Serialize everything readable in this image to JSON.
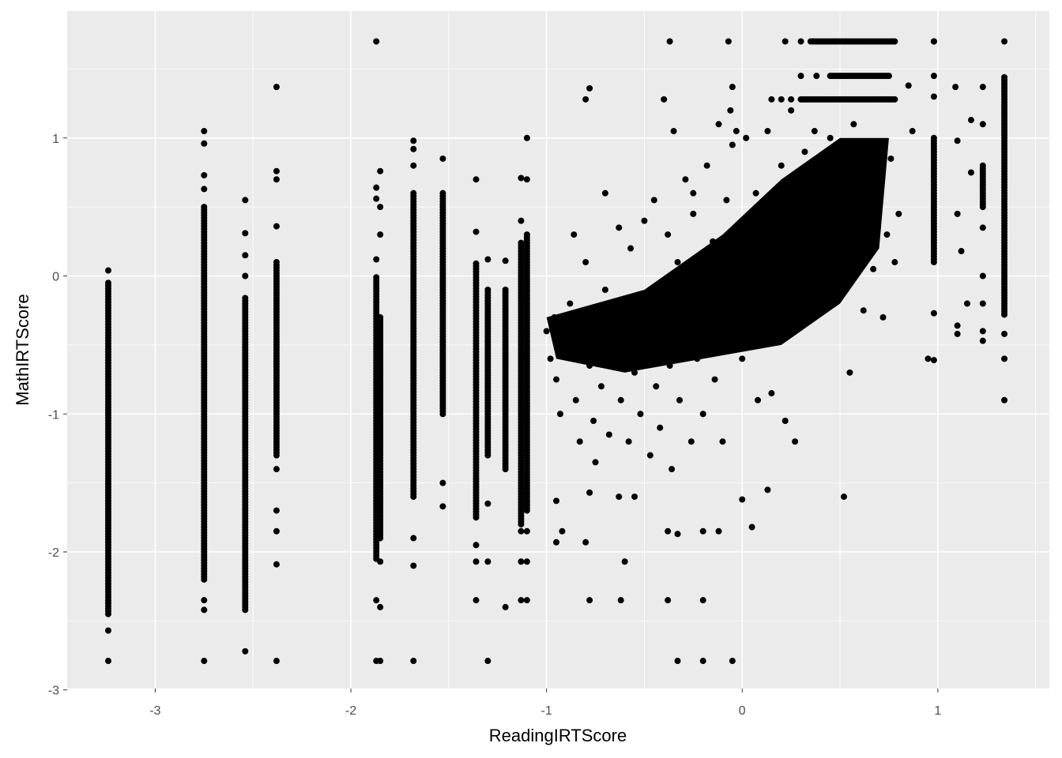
{
  "chart_data": {
    "type": "scatter",
    "title": "",
    "xlabel": "ReadingIRTScore",
    "ylabel": "MathIRTScore",
    "xlim": [
      -3.45,
      1.57
    ],
    "ylim": [
      -2.99,
      1.92
    ],
    "grid": true,
    "x_ticks": [
      -3,
      -2,
      -1,
      0,
      1
    ],
    "y_ticks": [
      -3,
      -2,
      -1,
      0,
      1
    ],
    "x_tick_labels": [
      "-3",
      "-2",
      "-1",
      "0",
      "1"
    ],
    "y_tick_labels": [
      "-3",
      "-2",
      "-1",
      "0",
      "1"
    ],
    "colors": {
      "panel": "#EBEBEB",
      "grid": "#FFFFFF",
      "point": "#000000"
    },
    "columns": [
      {
        "x": -3.24,
        "y_range": [
          -2.45,
          -0.05
        ],
        "y_points": [
          0.04,
          -2.57,
          -2.79
        ]
      },
      {
        "x": -2.75,
        "y_range": [
          -2.2,
          0.5
        ],
        "y_points": [
          1.05,
          0.96,
          0.73,
          0.63,
          -2.35,
          -2.42,
          -2.79
        ]
      },
      {
        "x": -2.54,
        "y_range": [
          -2.42,
          -0.15
        ],
        "y_points": [
          0.55,
          0.31,
          0.15,
          0.0,
          -2.72
        ]
      },
      {
        "x": -2.38,
        "y_range": [
          -1.3,
          0.1
        ],
        "y_points": [
          1.37,
          0.76,
          0.7,
          0.36,
          -1.4,
          -1.7,
          -1.85,
          -2.09,
          -2.79
        ]
      },
      {
        "x": -1.87,
        "y_range": [
          -2.05,
          0.0
        ],
        "y_points": [
          0.64,
          0.56,
          0.12,
          -2.35,
          -2.79,
          1.7
        ]
      },
      {
        "x": -1.85,
        "y_range": [
          -1.9,
          -0.3
        ],
        "y_points": [
          0.76,
          0.5,
          0.3,
          -2.07,
          -2.4,
          -2.79
        ]
      },
      {
        "x": -1.68,
        "y_range": [
          -1.6,
          0.6
        ],
        "y_points": [
          0.98,
          0.92,
          0.8,
          -1.9,
          -2.1,
          -2.79
        ]
      },
      {
        "x": -1.53,
        "y_range": [
          -1.0,
          0.6
        ],
        "y_points": [
          0.85,
          -1.5,
          -1.67
        ]
      },
      {
        "x": -1.36,
        "y_range": [
          -1.75,
          0.1
        ],
        "y_points": [
          0.7,
          0.32,
          -1.95,
          -2.07,
          -2.35
        ]
      },
      {
        "x": -1.3,
        "y_range": [
          -1.3,
          -0.1
        ],
        "y_points": [
          0.12,
          -1.65,
          -2.07,
          -2.79
        ]
      },
      {
        "x": -1.21,
        "y_range": [
          -1.4,
          -0.1
        ],
        "y_points": [
          0.11,
          -2.4
        ]
      },
      {
        "x": -1.13,
        "y_range": [
          -1.8,
          0.25
        ],
        "y_points": [
          0.71,
          0.4,
          -1.85,
          -2.07,
          -2.35
        ]
      },
      {
        "x": -1.1,
        "y_range": [
          -1.7,
          0.3
        ],
        "y_points": [
          1.0,
          0.7,
          -1.85,
          -2.07,
          -2.35
        ]
      },
      {
        "x": 0.98,
        "y_range": [
          0.1,
          1.0
        ],
        "y_points": [
          1.7,
          1.45,
          1.3,
          -0.27,
          -0.61
        ]
      },
      {
        "x": 1.23,
        "y_range": [
          0.5,
          0.8
        ],
        "y_points": [
          1.37,
          1.1,
          0.35,
          0.0,
          -0.2,
          -0.4,
          -0.47
        ]
      },
      {
        "x": 1.34,
        "y_range": [
          -0.28,
          1.45
        ],
        "y_points": [
          1.7,
          -0.42,
          -0.6,
          -0.9
        ]
      }
    ],
    "rows": [
      {
        "y": 1.7,
        "x_range": [
          0.35,
          0.78
        ],
        "x_points": [
          -0.37,
          -0.07,
          0.22,
          0.3,
          0.98
        ]
      },
      {
        "y": 1.28,
        "x_range": [
          0.3,
          0.78
        ],
        "x_points": [
          0.15,
          0.2,
          0.25
        ]
      },
      {
        "y": 1.45,
        "x_range": [
          0.45,
          0.75
        ],
        "x_points": [
          0.3,
          0.38
        ]
      }
    ],
    "dense_region": [
      [
        -1.0,
        -0.3
      ],
      [
        -0.5,
        -0.1
      ],
      [
        -0.1,
        0.3
      ],
      [
        0.2,
        0.7
      ],
      [
        0.5,
        1.0
      ],
      [
        0.75,
        1.0
      ],
      [
        0.7,
        0.2
      ],
      [
        0.5,
        -0.2
      ],
      [
        0.2,
        -0.5
      ],
      [
        -0.2,
        -0.6
      ],
      [
        -0.6,
        -0.7
      ],
      [
        -0.95,
        -0.6
      ]
    ],
    "points": [
      [
        -1,
        -0.4
      ],
      [
        -0.98,
        -0.6
      ],
      [
        -0.96,
        -0.3
      ],
      [
        -0.95,
        -0.75
      ],
      [
        -0.93,
        -1.0
      ],
      [
        -0.9,
        -0.5
      ],
      [
        -0.88,
        -0.2
      ],
      [
        -0.86,
        0.3
      ],
      [
        -0.85,
        -0.9
      ],
      [
        -0.83,
        -1.2
      ],
      [
        -0.8,
        -0.45
      ],
      [
        -0.8,
        0.1
      ],
      [
        -0.78,
        -0.65
      ],
      [
        -0.76,
        -1.05
      ],
      [
        -0.75,
        -1.35
      ],
      [
        -0.73,
        -0.3
      ],
      [
        -0.72,
        -0.8
      ],
      [
        -0.7,
        0.6
      ],
      [
        -0.7,
        -0.1
      ],
      [
        -0.68,
        -1.15
      ],
      [
        -0.66,
        -0.55
      ],
      [
        -0.65,
        -0.2
      ],
      [
        -0.63,
        0.35
      ],
      [
        -0.62,
        -0.9
      ],
      [
        -0.6,
        -0.4
      ],
      [
        -0.58,
        -1.2
      ],
      [
        -0.57,
        0.2
      ],
      [
        -0.55,
        -0.7
      ],
      [
        -0.53,
        -0.15
      ],
      [
        -0.52,
        -1.0
      ],
      [
        -0.5,
        -0.35
      ],
      [
        -0.5,
        0.4
      ],
      [
        -0.48,
        -0.55
      ],
      [
        -0.47,
        -1.3
      ],
      [
        -0.45,
        0.55
      ],
      [
        -0.44,
        -0.8
      ],
      [
        -0.43,
        -0.1
      ],
      [
        -0.42,
        -1.1
      ],
      [
        -0.4,
        -0.3
      ],
      [
        -0.38,
        0.3
      ],
      [
        -0.37,
        -0.65
      ],
      [
        -0.36,
        -1.4
      ],
      [
        -0.35,
        1.05
      ],
      [
        -0.33,
        0.1
      ],
      [
        -0.32,
        -0.9
      ],
      [
        -0.3,
        -0.45
      ],
      [
        -0.29,
        0.7
      ],
      [
        -0.28,
        -0.2
      ],
      [
        -0.26,
        -1.2
      ],
      [
        -0.25,
        0.45
      ],
      [
        -0.23,
        -0.6
      ],
      [
        -0.22,
        0.0
      ],
      [
        -0.2,
        -1.0
      ],
      [
        -0.18,
        0.8
      ],
      [
        -0.17,
        -0.35
      ],
      [
        -0.15,
        0.25
      ],
      [
        -0.14,
        -0.75
      ],
      [
        -0.12,
        1.1
      ],
      [
        -0.1,
        -0.1
      ],
      [
        -0.1,
        -1.2
      ],
      [
        -0.08,
        0.55
      ],
      [
        -0.06,
        -0.5
      ],
      [
        -0.05,
        0.95
      ],
      [
        -0.03,
        -0.2
      ],
      [
        -0.02,
        0.3
      ],
      [
        0,
        -0.6
      ],
      [
        0.02,
        1.0
      ],
      [
        0.03,
        0.05
      ],
      [
        0.05,
        -0.35
      ],
      [
        0.07,
        0.6
      ],
      [
        0.08,
        -0.9
      ],
      [
        0.1,
        0.25
      ],
      [
        0.12,
        -0.15
      ],
      [
        0.13,
        1.05
      ],
      [
        0.15,
        0.5
      ],
      [
        0.17,
        -0.45
      ],
      [
        0.18,
        0.15
      ],
      [
        0.2,
        0.8
      ],
      [
        0.22,
        -0.1
      ],
      [
        0.23,
        0.35
      ],
      [
        0.25,
        1.2
      ],
      [
        0.27,
        -0.3
      ],
      [
        0.28,
        0.6
      ],
      [
        0.3,
        0.05
      ],
      [
        0.32,
        0.9
      ],
      [
        0.33,
        -0.05
      ],
      [
        0.35,
        0.45
      ],
      [
        0.37,
        1.05
      ],
      [
        0.38,
        0.2
      ],
      [
        0.4,
        0.7
      ],
      [
        0.42,
        -0.2
      ],
      [
        0.43,
        0.4
      ],
      [
        0.45,
        1.0
      ],
      [
        0.47,
        0.1
      ],
      [
        0.48,
        0.6
      ],
      [
        0.5,
        0.85
      ],
      [
        0.52,
        0.3
      ],
      [
        0.53,
        -0.1
      ],
      [
        0.55,
        0.55
      ],
      [
        0.57,
        1.1
      ],
      [
        0.58,
        0.2
      ],
      [
        0.6,
        0.7
      ],
      [
        0.62,
        -0.25
      ],
      [
        0.63,
        0.4
      ],
      [
        0.65,
        0.95
      ],
      [
        0.67,
        0.05
      ],
      [
        0.7,
        0.6
      ],
      [
        0.72,
        -0.3
      ],
      [
        0.74,
        0.3
      ],
      [
        0.76,
        0.85
      ],
      [
        0.78,
        0.1
      ],
      [
        0.8,
        0.45
      ],
      [
        0.85,
        1.38
      ],
      [
        0.87,
        1.05
      ],
      [
        -0.8,
        1.28
      ],
      [
        -0.78,
        1.36
      ],
      [
        -0.4,
        1.28
      ],
      [
        0.95,
        -0.6
      ],
      [
        -0.2,
        -1.85
      ],
      [
        -0.12,
        -1.85
      ],
      [
        0,
        -1.62
      ],
      [
        0.05,
        -1.82
      ],
      [
        0.13,
        -1.55
      ],
      [
        0.27,
        -1.2
      ],
      [
        0.52,
        -1.6
      ],
      [
        0.55,
        -0.7
      ],
      [
        -0.6,
        -2.07
      ],
      [
        -0.63,
        -1.6
      ],
      [
        -0.55,
        -1.6
      ],
      [
        -0.78,
        -1.57
      ],
      [
        -0.8,
        -1.93
      ],
      [
        -0.95,
        -1.63
      ],
      [
        -0.95,
        -1.93
      ],
      [
        -0.92,
        -1.85
      ],
      [
        -0.78,
        -2.35
      ],
      [
        -0.62,
        -2.35
      ],
      [
        -0.38,
        -2.35
      ],
      [
        -0.2,
        -2.35
      ],
      [
        -0.33,
        -2.79
      ],
      [
        -0.2,
        -2.79
      ],
      [
        -0.05,
        -2.79
      ],
      [
        -0.33,
        -1.87
      ],
      [
        -0.38,
        -1.85
      ],
      [
        0.22,
        -1.05
      ],
      [
        0.15,
        -0.85
      ],
      [
        1.1,
        -0.36
      ],
      [
        1.1,
        -0.42
      ],
      [
        1.1,
        0.45
      ],
      [
        1.1,
        0.98
      ],
      [
        1.12,
        0.18
      ],
      [
        1.15,
        -0.2
      ],
      [
        1.17,
        0.75
      ],
      [
        1.17,
        1.13
      ],
      [
        1.09,
        1.37
      ],
      [
        -0.25,
        0.6
      ],
      [
        -0.05,
        1.37
      ],
      [
        -0.06,
        1.2
      ],
      [
        -0.03,
        1.05
      ]
    ]
  }
}
